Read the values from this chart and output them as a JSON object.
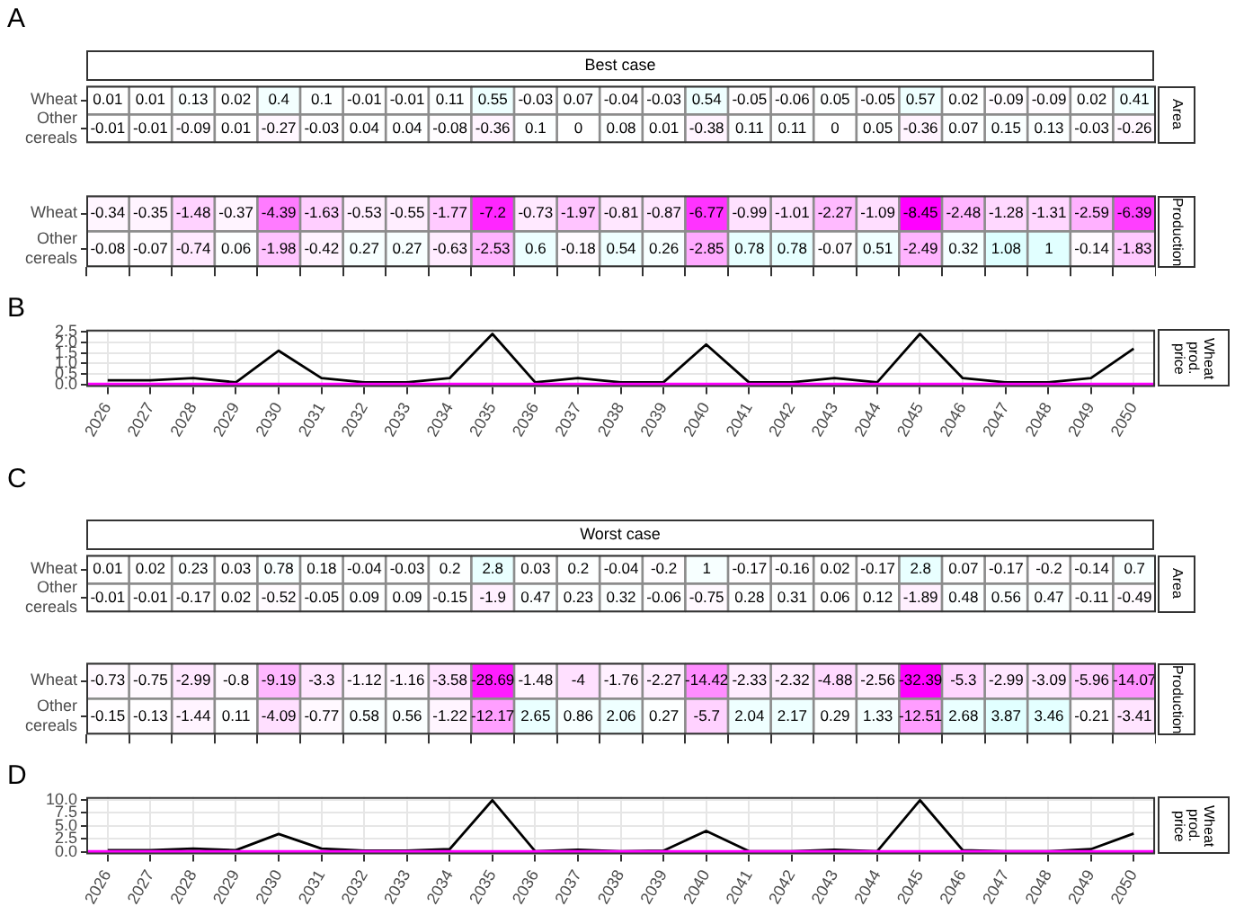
{
  "chart_data": [
    {
      "type": "heatmap",
      "title": "Best case",
      "y2label": "Area",
      "annotations": [
        "A"
      ],
      "categories": [
        "2026",
        "2027",
        "2028",
        "2029",
        "2030",
        "2031",
        "2032",
        "2033",
        "2034",
        "2035",
        "2036",
        "2037",
        "2038",
        "2039",
        "2040",
        "2041",
        "2042",
        "2043",
        "2044",
        "2045",
        "2046",
        "2047",
        "2048",
        "2049",
        "2050"
      ],
      "y_categories": [
        "Wheat",
        "Other cereals"
      ],
      "cells": [
        [
          0.01,
          0.01,
          0.13,
          0.02,
          0.4,
          0.1,
          -0.01,
          -0.01,
          0.11,
          0.55,
          -0.03,
          0.07,
          -0.04,
          -0.03,
          0.54,
          -0.05,
          -0.06,
          0.05,
          -0.05,
          0.57,
          0.02,
          -0.09,
          -0.09,
          0.02,
          0.41
        ],
        [
          -0.01,
          -0.01,
          -0.09,
          0.01,
          -0.27,
          -0.03,
          0.04,
          0.04,
          -0.08,
          -0.36,
          0.1,
          0,
          0.08,
          0.01,
          -0.38,
          0.11,
          0.11,
          0,
          0.05,
          -0.36,
          0.07,
          0.15,
          0.13,
          -0.03,
          -0.26
        ]
      ],
      "data_labels": true,
      "colors": [
        "#ff00ff",
        "#ffffff",
        "#00ffff"
      ],
      "tick_labels": "y"
    },
    {
      "type": "heatmap",
      "y2label": "Production",
      "categories": [
        "2026",
        "2027",
        "2028",
        "2029",
        "2030",
        "2031",
        "2032",
        "2033",
        "2034",
        "2035",
        "2036",
        "2037",
        "2038",
        "2039",
        "2040",
        "2041",
        "2042",
        "2043",
        "2044",
        "2045",
        "2046",
        "2047",
        "2048",
        "2049",
        "2050"
      ],
      "y_categories": [
        "Wheat",
        "Other cereals"
      ],
      "cells": [
        [
          -0.34,
          -0.35,
          -1.48,
          -0.37,
          -4.39,
          -1.63,
          -0.53,
          -0.55,
          -1.77,
          -7.2,
          -0.73,
          -1.97,
          -0.81,
          -0.87,
          -6.77,
          -0.99,
          -1.01,
          -2.27,
          -1.09,
          -8.45,
          -2.48,
          -1.28,
          -1.31,
          -2.59,
          -6.39
        ],
        [
          -0.08,
          -0.07,
          -0.74,
          0.06,
          -1.98,
          -0.42,
          0.27,
          0.27,
          -0.63,
          -2.53,
          0.6,
          -0.18,
          0.54,
          0.26,
          -2.85,
          0.78,
          0.78,
          -0.07,
          0.51,
          -2.49,
          0.32,
          1.08,
          1,
          -0.14,
          -1.83
        ]
      ],
      "data_labels": true,
      "colors": [
        "#ff00ff",
        "#ffffff",
        "#00ffff"
      ],
      "tick_labels": "y"
    },
    {
      "type": "line",
      "y2label": "Wheat prod. price",
      "annotations": [
        "B"
      ],
      "categories": [
        "2026",
        "2027",
        "2028",
        "2029",
        "2030",
        "2031",
        "2032",
        "2033",
        "2034",
        "2035",
        "2036",
        "2037",
        "2038",
        "2039",
        "2040",
        "2041",
        "2042",
        "2043",
        "2044",
        "2045",
        "2046",
        "2047",
        "2048",
        "2049",
        "2050"
      ],
      "series": [
        {
          "color": "#000000",
          "values": [
            0.2,
            0.2,
            0.3,
            0.1,
            1.6,
            0.3,
            0.1,
            0.1,
            0.3,
            2.4,
            0.1,
            0.3,
            0.1,
            0.1,
            1.9,
            0.1,
            0.1,
            0.3,
            0.1,
            2.4,
            0.3,
            0.1,
            0.1,
            0.3,
            1.7
          ]
        }
      ],
      "ylim": [
        -0.12,
        2.6
      ],
      "yticks": [
        {
          "value": 0,
          "label": "0.0"
        },
        0.5,
        {
          "value": 1,
          "label": "1.0"
        },
        1.5,
        {
          "value": 2,
          "label": "2.0"
        },
        2.5
      ],
      "grid": true,
      "marker": "none",
      "ref_lines": [
        {
          "axis": "y",
          "value": 0,
          "color": "#ff00ff"
        }
      ]
    },
    {
      "type": "heatmap",
      "title": "Worst case",
      "y2label": "Area",
      "annotations": [
        "C"
      ],
      "categories": [
        "2026",
        "2027",
        "2028",
        "2029",
        "2030",
        "2031",
        "2032",
        "2033",
        "2034",
        "2035",
        "2036",
        "2037",
        "2038",
        "2039",
        "2040",
        "2041",
        "2042",
        "2043",
        "2044",
        "2045",
        "2046",
        "2047",
        "2048",
        "2049",
        "2050"
      ],
      "y_categories": [
        "Wheat",
        "Other cereals"
      ],
      "cells": [
        [
          0.01,
          0.02,
          0.23,
          0.03,
          0.78,
          0.18,
          -0.04,
          -0.03,
          0.2,
          2.8,
          0.03,
          0.2,
          -0.04,
          -0.2,
          1,
          -0.17,
          -0.16,
          0.02,
          -0.17,
          2.8,
          0.07,
          -0.17,
          -0.2,
          -0.14,
          0.7
        ],
        [
          -0.01,
          -0.01,
          -0.17,
          0.02,
          -0.52,
          -0.05,
          0.09,
          0.09,
          -0.15,
          -1.9,
          0.47,
          0.23,
          0.32,
          -0.06,
          -0.75,
          0.28,
          0.31,
          0.06,
          0.12,
          -1.89,
          0.48,
          0.56,
          0.47,
          -0.11,
          -0.49
        ]
      ],
      "data_labels": true,
      "colors": [
        "#ff00ff",
        "#ffffff",
        "#00ffff"
      ],
      "tick_labels": "y"
    },
    {
      "type": "heatmap",
      "y2label": "Production",
      "categories": [
        "2026",
        "2027",
        "2028",
        "2029",
        "2030",
        "2031",
        "2032",
        "2033",
        "2034",
        "2035",
        "2036",
        "2037",
        "2038",
        "2039",
        "2040",
        "2041",
        "2042",
        "2043",
        "2044",
        "2045",
        "2046",
        "2047",
        "2048",
        "2049",
        "2050"
      ],
      "y_categories": [
        "Wheat",
        "Other cereals"
      ],
      "cells": [
        [
          -0.73,
          -0.75,
          -2.99,
          -0.8,
          -9.19,
          -3.3,
          -1.12,
          -1.16,
          -3.58,
          -28.69,
          -1.48,
          -4,
          -1.76,
          -2.27,
          -14.42,
          -2.33,
          -2.32,
          -4.88,
          -2.56,
          -32.39,
          -5.3,
          -2.99,
          -3.09,
          -5.96,
          -14.07
        ],
        [
          -0.15,
          -0.13,
          -1.44,
          0.11,
          -4.09,
          -0.77,
          0.58,
          0.56,
          -1.22,
          -12.17,
          2.65,
          0.86,
          2.06,
          0.27,
          -5.7,
          2.04,
          2.17,
          0.29,
          1.33,
          -12.51,
          2.68,
          3.87,
          3.46,
          -0.21,
          -3.41
        ]
      ],
      "data_labels": true,
      "colors": [
        "#ff00ff",
        "#ffffff",
        "#00ffff"
      ],
      "tick_labels": "y"
    },
    {
      "type": "line",
      "y2label": "Wheat prod. price",
      "annotations": [
        "D"
      ],
      "categories": [
        "2026",
        "2027",
        "2028",
        "2029",
        "2030",
        "2031",
        "2032",
        "2033",
        "2034",
        "2035",
        "2036",
        "2037",
        "2038",
        "2039",
        "2040",
        "2041",
        "2042",
        "2043",
        "2044",
        "2045",
        "2046",
        "2047",
        "2048",
        "2049",
        "2050"
      ],
      "series": [
        {
          "color": "#000000",
          "values": [
            0.3,
            0.3,
            0.6,
            0.3,
            3.4,
            0.6,
            0.2,
            0.2,
            0.5,
            9.9,
            0.1,
            0.4,
            0.1,
            0.2,
            4,
            0.1,
            0.1,
            0.4,
            0.1,
            9.9,
            0.3,
            0.1,
            0.1,
            0.5,
            3.5
          ]
        }
      ],
      "ylim": [
        -0.5,
        10.5
      ],
      "yticks": [
        {
          "value": 0,
          "label": "0.0"
        },
        2.5,
        {
          "value": 5,
          "label": "5.0"
        },
        7.5,
        {
          "value": 10,
          "label": "10.0"
        }
      ],
      "grid": true,
      "marker": "none",
      "ref_lines": [
        {
          "axis": "y",
          "value": 0,
          "color": "#ff00ff"
        }
      ]
    }
  ]
}
